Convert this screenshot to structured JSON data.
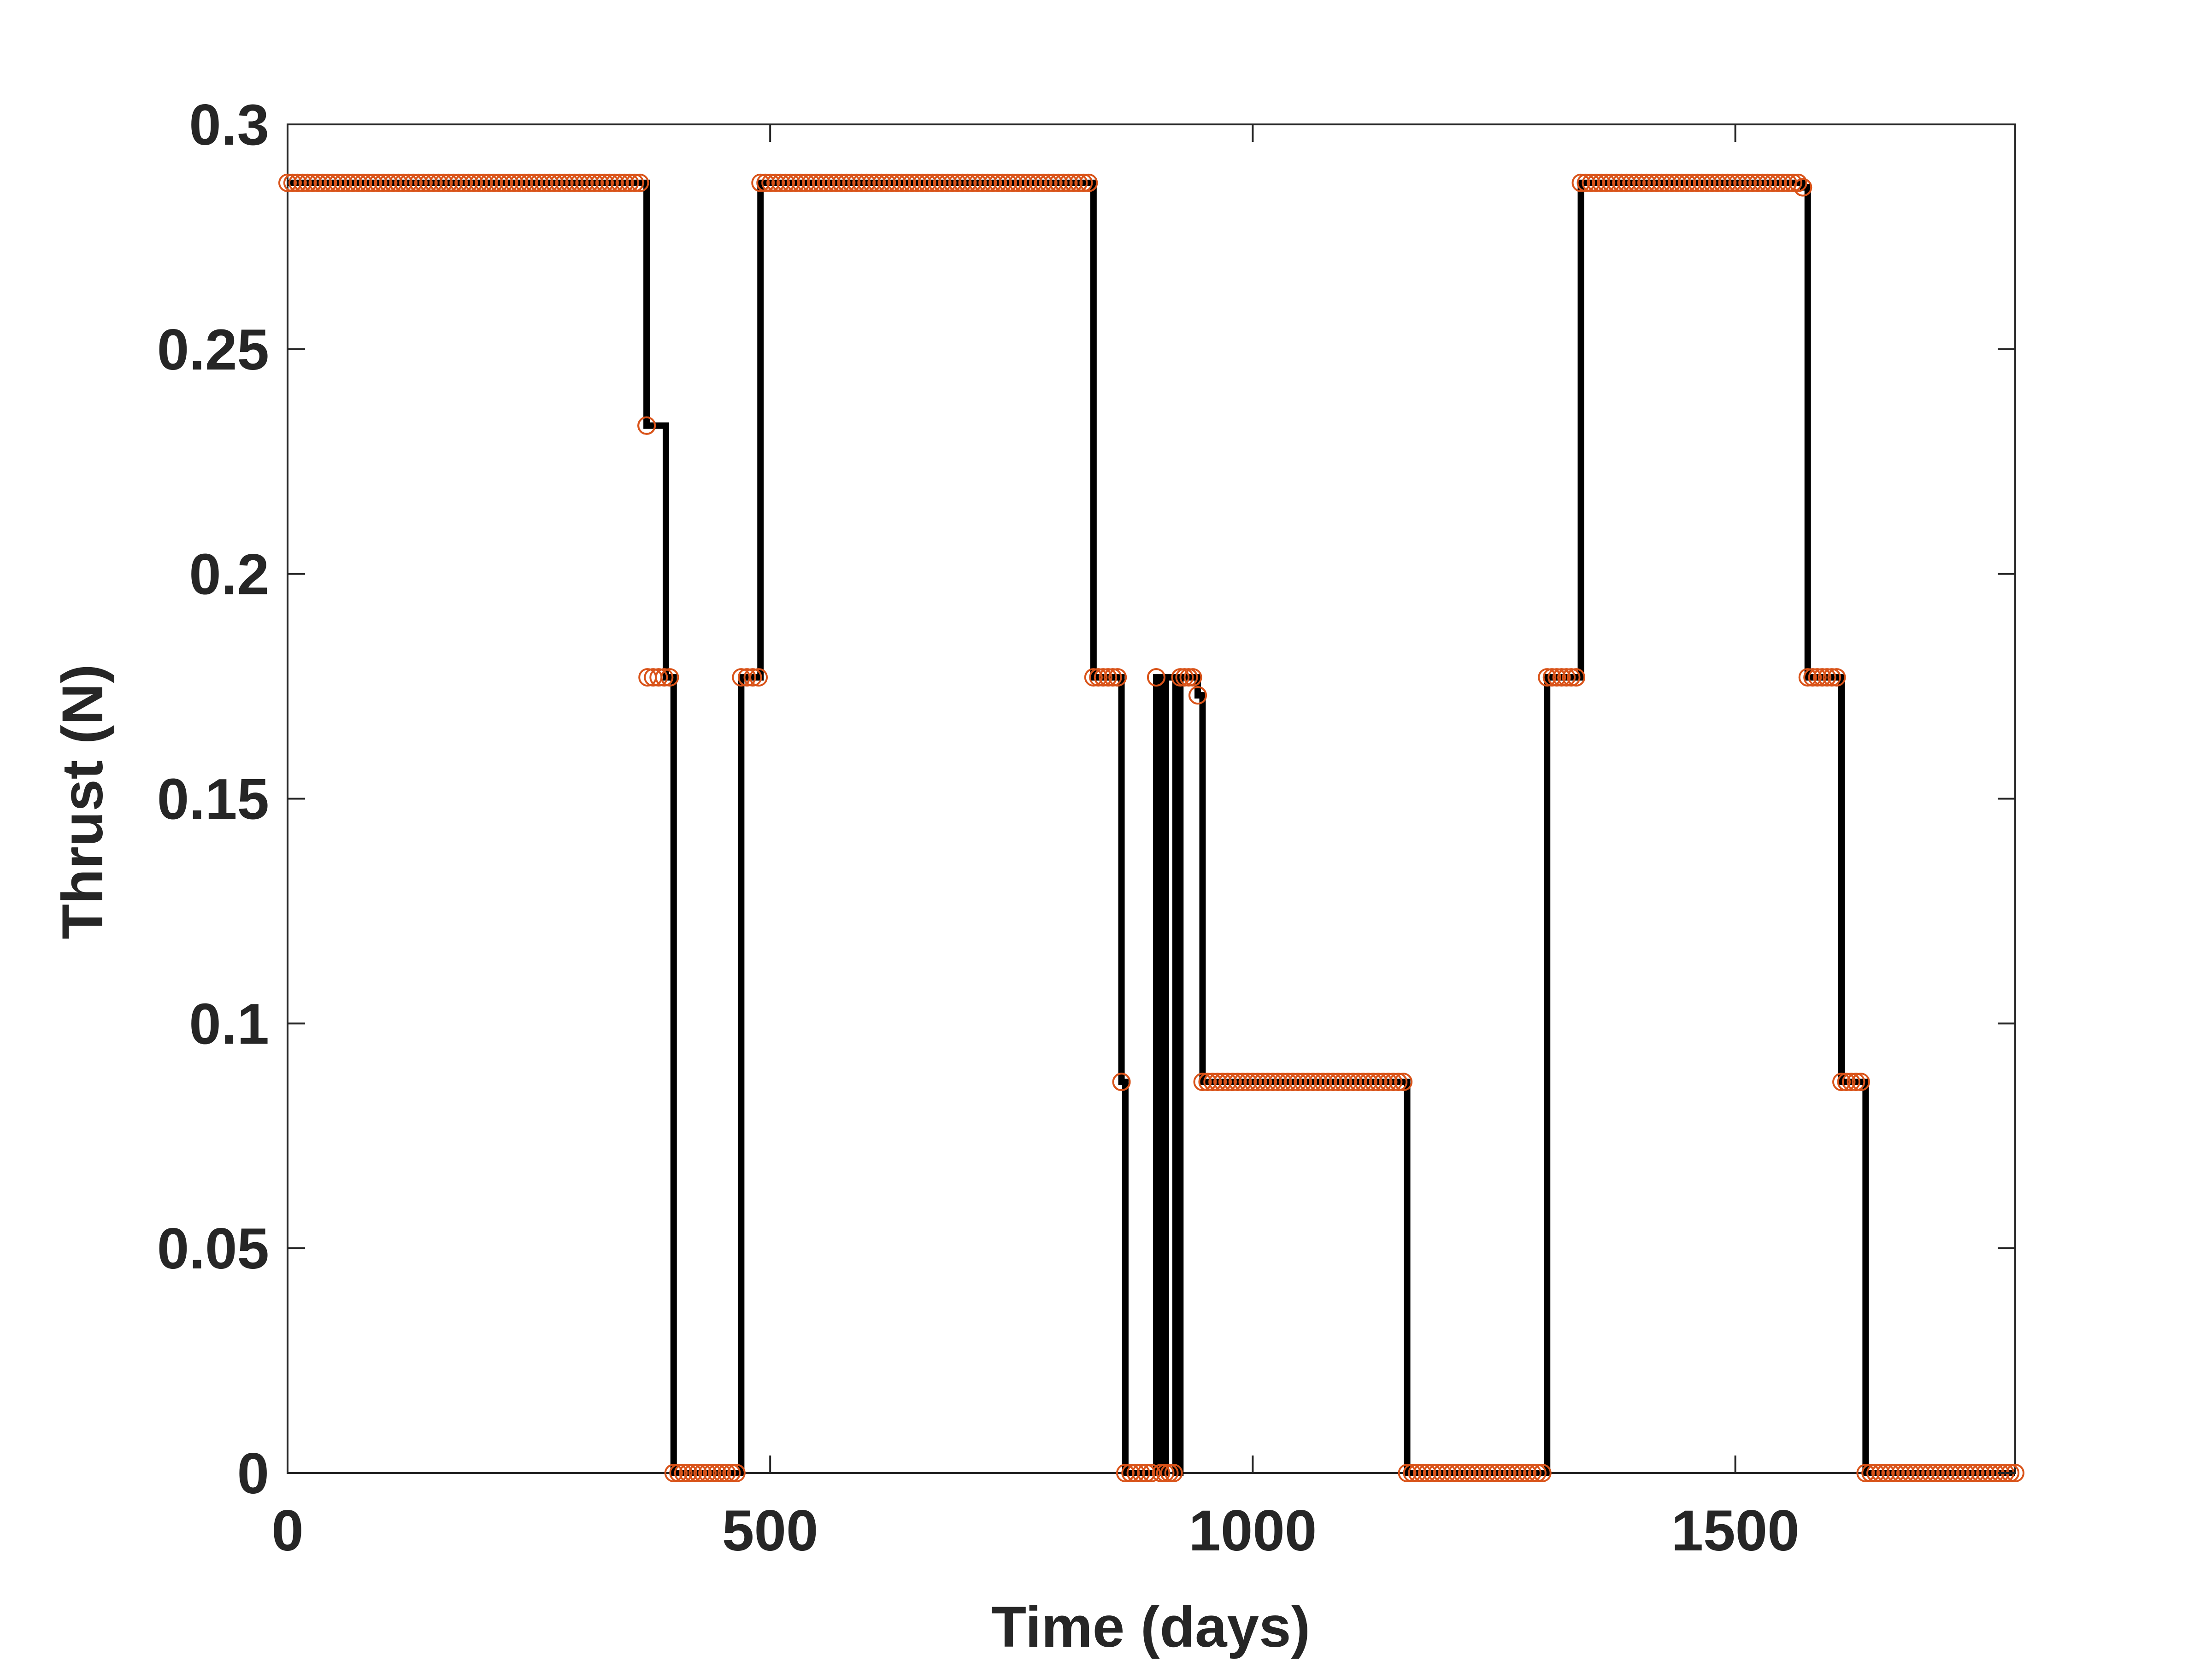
{
  "chart_data": {
    "type": "line",
    "title": "",
    "xlabel": "Time (days)",
    "ylabel": "Thrust (N)",
    "xlim": [
      0,
      1790
    ],
    "ylim": [
      0,
      0.3
    ],
    "x_ticks": [
      0,
      500,
      1000,
      1500
    ],
    "x_tick_labels": [
      "0",
      "500",
      "1000",
      "1500"
    ],
    "y_ticks": [
      0,
      0.05,
      0.1,
      0.15,
      0.2,
      0.25,
      0.3
    ],
    "y_tick_labels": [
      "0",
      "0.05",
      "0.1",
      "0.15",
      "0.2",
      "0.25",
      "0.3"
    ],
    "grid": false,
    "legend": "none",
    "colors": {
      "line": "#000000",
      "marker": "#D95319",
      "axes": "#262626",
      "background": "#ffffff"
    },
    "series": [
      {
        "style": "stairs",
        "x": [
          0,
          365,
          372,
          392,
          396,
          400,
          465,
          470,
          490,
          830,
          835,
          860,
          864,
          868,
          895,
          900,
          905,
          910,
          920,
          925,
          938,
          943,
          948,
          1160,
          1300,
          1305,
          1340,
          1565,
          1570,
          1575,
          1605,
          1610,
          1630,
          1635,
          1790
        ],
        "y": [
          0.287,
          0.287,
          0.233,
          0.177,
          0.177,
          0,
          0,
          0.177,
          0.287,
          0.287,
          0.177,
          0.177,
          0.087,
          0,
          0,
          0.177,
          0,
          0.177,
          0,
          0.177,
          0.177,
          0.173,
          0.087,
          0,
          0,
          0.177,
          0.287,
          0.287,
          0.286,
          0.177,
          0.177,
          0.087,
          0.087,
          0,
          0
        ]
      },
      {
        "style": "markers",
        "marker": "circle",
        "segments": [
          {
            "x_start": 0,
            "x_end": 365,
            "y": 0.287
          },
          {
            "x_start": 372,
            "x_end": 372,
            "y": 0.233
          },
          {
            "x_start": 373,
            "x_end": 396,
            "y": 0.177
          },
          {
            "x_start": 400,
            "x_end": 465,
            "y": 0
          },
          {
            "x_start": 470,
            "x_end": 488,
            "y": 0.177
          },
          {
            "x_start": 490,
            "x_end": 830,
            "y": 0.287
          },
          {
            "x_start": 835,
            "x_end": 860,
            "y": 0.177
          },
          {
            "x_start": 864,
            "x_end": 864,
            "y": 0.087
          },
          {
            "x_start": 868,
            "x_end": 895,
            "y": 0
          },
          {
            "x_start": 900,
            "x_end": 900,
            "y": 0.177
          },
          {
            "x_start": 905,
            "x_end": 918,
            "y": 0
          },
          {
            "x_start": 925,
            "x_end": 938,
            "y": 0.177
          },
          {
            "x_start": 943,
            "x_end": 943,
            "y": 0.173
          },
          {
            "x_start": 948,
            "x_end": 1156,
            "y": 0.087
          },
          {
            "x_start": 1160,
            "x_end": 1300,
            "y": 0
          },
          {
            "x_start": 1305,
            "x_end": 1335,
            "y": 0.177
          },
          {
            "x_start": 1340,
            "x_end": 1565,
            "y": 0.287
          },
          {
            "x_start": 1570,
            "x_end": 1570,
            "y": 0.286
          },
          {
            "x_start": 1575,
            "x_end": 1605,
            "y": 0.177
          },
          {
            "x_start": 1610,
            "x_end": 1630,
            "y": 0.087
          },
          {
            "x_start": 1635,
            "x_end": 1790,
            "y": 0
          }
        ]
      }
    ]
  }
}
